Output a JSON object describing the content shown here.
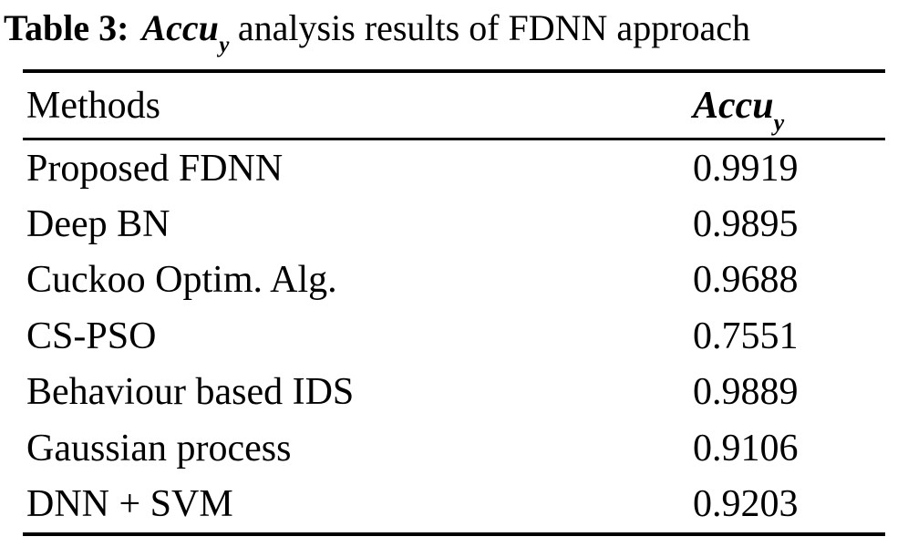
{
  "caption": {
    "prefix": "Table 3:",
    "metric": "Accu",
    "metric_sub": "y",
    "rest": " analysis results of FDNN approach"
  },
  "table": {
    "headers": {
      "methods": "Methods",
      "accuracy": "Accu",
      "accuracy_sub": "y"
    },
    "rows": [
      {
        "method": "Proposed FDNN",
        "value": "0.9919"
      },
      {
        "method": "Deep BN",
        "value": "0.9895"
      },
      {
        "method": "Cuckoo Optim. Alg.",
        "value": "0.9688"
      },
      {
        "method": "CS-PSO",
        "value": "0.7551"
      },
      {
        "method": "Behaviour based IDS",
        "value": "0.9889"
      },
      {
        "method": "Gaussian process",
        "value": "0.9106"
      },
      {
        "method": "DNN + SVM",
        "value": "0.9203"
      }
    ]
  },
  "chart_data": {
    "type": "table",
    "title": "Table 3: Accu_y analysis results of FDNN approach",
    "columns": [
      "Methods",
      "Accu_y"
    ],
    "categories": [
      "Proposed FDNN",
      "Deep BN",
      "Cuckoo Optim. Alg.",
      "CS-PSO",
      "Behaviour based IDS",
      "Gaussian process",
      "DNN + SVM"
    ],
    "values": [
      0.9919,
      0.9895,
      0.9688,
      0.7551,
      0.9889,
      0.9106,
      0.9203
    ]
  },
  "colors": {
    "background": "#ffffff",
    "text": "#000000",
    "rule": "#000000"
  }
}
